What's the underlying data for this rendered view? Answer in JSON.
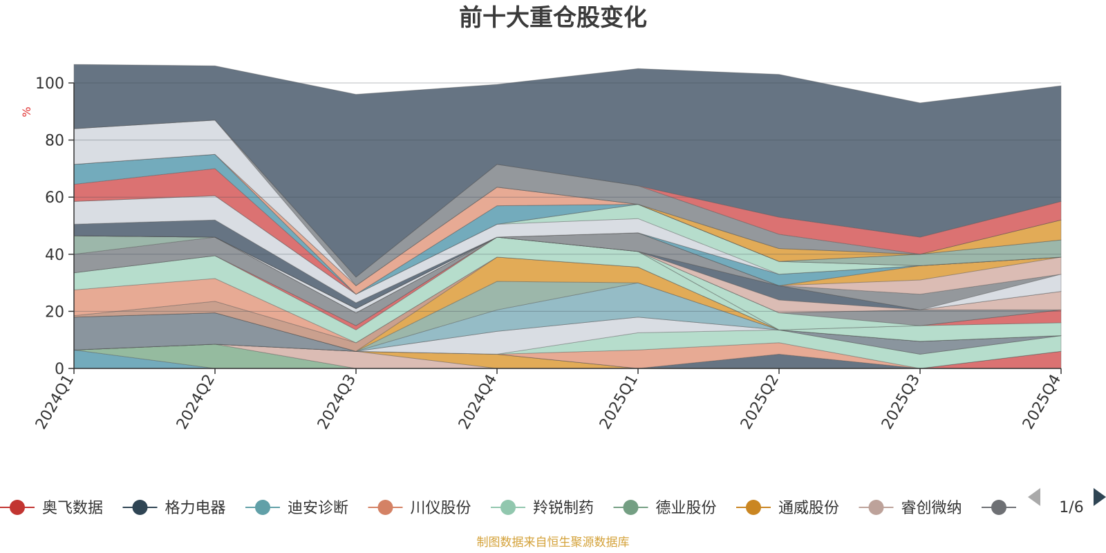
{
  "chart_data": {
    "type": "area",
    "stacked": true,
    "title": "前十大重仓股变化",
    "y_unit": "%",
    "ylim": [
      0,
      100
    ],
    "yticks": [
      0,
      20,
      40,
      60,
      80,
      100
    ],
    "grid": true,
    "categories": [
      "2024Q1",
      "2024Q2",
      "2024Q3",
      "2024Q4",
      "2025Q1",
      "2025Q2",
      "2025Q3",
      "2025Q4"
    ],
    "series": [
      {
        "name": "迪安诊断",
        "color": "#6ba7b8",
        "values": [
          6.5,
          0,
          0,
          0,
          0,
          0,
          0,
          0
        ]
      },
      {
        "name": "德业股份",
        "color": "#8fb79a",
        "values": [
          0,
          8.5,
          0,
          0,
          0,
          0,
          0,
          0
        ]
      },
      {
        "name": "睿创微纳",
        "color": "#d9b8b0",
        "values": [
          0,
          0,
          6,
          0,
          0,
          0,
          0,
          0
        ]
      },
      {
        "name": "通威股份",
        "color": "#e0a64e",
        "values": [
          0,
          0,
          0,
          5,
          0,
          0,
          0,
          0
        ]
      },
      {
        "name": "奥飞数据",
        "color": "#d96a6a",
        "values": [
          0,
          0,
          0,
          0,
          0,
          0,
          0,
          6
        ]
      },
      {
        "name": "格力电器",
        "color": "#5e6d7c",
        "values": [
          0,
          0,
          0,
          0,
          0,
          5,
          0,
          0
        ]
      },
      {
        "name": "川仪股份",
        "color": "#e6a58e",
        "values": [
          0,
          0,
          0,
          0,
          6.5,
          4,
          0,
          0
        ]
      },
      {
        "name": "羚锐制药",
        "color": "#b2dbc9",
        "values": [
          0,
          0,
          0,
          0,
          6,
          4.5,
          5,
          5.5
        ]
      },
      {
        "name": "",
        "color": "#d7dbe2",
        "values": [
          0,
          0,
          0,
          8,
          5.5,
          0,
          0,
          0
        ]
      },
      {
        "name": "",
        "color": "#848f99",
        "values": [
          11.5,
          11,
          0,
          0,
          0,
          0,
          4.5,
          0
        ]
      },
      {
        "name": "",
        "color": "#8fb8c3",
        "values": [
          0,
          0,
          0,
          7.5,
          12,
          0,
          0,
          0
        ]
      },
      {
        "name": "",
        "color": "#97b3a5",
        "values": [
          0,
          0,
          0,
          10,
          0,
          0,
          0,
          0
        ]
      },
      {
        "name": "",
        "color": "#e0a64e",
        "values": [
          0,
          0,
          0,
          8.5,
          5.5,
          0,
          0,
          0
        ]
      },
      {
        "name": "",
        "color": "#c79b88",
        "values": [
          0.5,
          4,
          3,
          0,
          0,
          0,
          0,
          0
        ]
      },
      {
        "name": "",
        "color": "#e6a58e",
        "values": [
          9,
          8,
          0,
          0,
          0,
          0,
          0,
          0
        ]
      },
      {
        "name": "",
        "color": "#b2dbc9",
        "values": [
          6,
          8,
          4.5,
          7,
          5.5,
          0,
          5.5,
          4.5
        ]
      },
      {
        "name": "",
        "color": "#d96a6a",
        "values": [
          0,
          0,
          1.5,
          0,
          0,
          0,
          0,
          4.5
        ]
      },
      {
        "name": "",
        "color": "#b2dbc9",
        "values": [
          0,
          0,
          0,
          0,
          0,
          6,
          0,
          0
        ]
      },
      {
        "name": "",
        "color": "#8e9297",
        "values": [
          6.5,
          6.5,
          4.5,
          0,
          0,
          0,
          5.5,
          0
        ]
      },
      {
        "name": "",
        "color": "#97b3a5",
        "values": [
          6.5,
          0,
          0,
          0,
          0,
          0,
          0,
          0
        ]
      },
      {
        "name": "",
        "color": "#d9b8b0",
        "values": [
          0,
          0,
          0,
          0,
          0,
          4.5,
          0,
          6.5
        ]
      },
      {
        "name": "",
        "color": "#5e6d7c",
        "values": [
          0,
          0,
          0,
          0,
          0,
          5,
          0,
          0
        ]
      },
      {
        "name": "",
        "color": "#d7dbe2",
        "values": [
          0,
          0,
          1.5,
          0,
          0,
          0,
          0,
          6
        ]
      },
      {
        "name": "",
        "color": "#8e9297",
        "values": [
          0,
          0,
          0,
          0,
          6.5,
          0,
          5.5,
          0
        ]
      },
      {
        "name": "",
        "color": "#d9b8b0",
        "values": [
          0,
          0,
          0,
          0,
          0,
          0,
          5,
          6
        ]
      },
      {
        "name": "",
        "color": "#e0a64e",
        "values": [
          0,
          0,
          0,
          0,
          0,
          0,
          5,
          0
        ]
      },
      {
        "name": "",
        "color": "#6ba7b8",
        "values": [
          0,
          0,
          0,
          0,
          0,
          4,
          0,
          0
        ]
      },
      {
        "name": "",
        "color": "#5e6d7c",
        "values": [
          4,
          6,
          2,
          0,
          0,
          0,
          0,
          0
        ]
      },
      {
        "name": "",
        "color": "#d7dbe2",
        "values": [
          8,
          8.5,
          3,
          4.5,
          5,
          0,
          0,
          0
        ]
      },
      {
        "name": "",
        "color": "#b2dbc9",
        "values": [
          0,
          0,
          0,
          0,
          5,
          4.5,
          0,
          0
        ]
      },
      {
        "name": "",
        "color": "#d96a6a",
        "values": [
          6,
          9.5,
          0,
          0,
          0,
          0,
          0,
          0
        ]
      },
      {
        "name": "",
        "color": "#6ba7b8",
        "values": [
          7,
          5,
          0,
          6.5,
          0,
          0,
          0,
          0
        ]
      },
      {
        "name": "",
        "color": "#97b3a5",
        "values": [
          0,
          0,
          0,
          0,
          0,
          0,
          4,
          6
        ]
      },
      {
        "name": "",
        "color": "#e6a58e",
        "values": [
          0,
          0,
          3,
          6.5,
          0,
          0,
          0,
          0
        ]
      },
      {
        "name": "",
        "color": "#e0a64e",
        "values": [
          0,
          0,
          0,
          0,
          0,
          4.5,
          0,
          7
        ]
      },
      {
        "name": "",
        "color": "#d7dbe2",
        "values": [
          12.5,
          12,
          0,
          0,
          0,
          0,
          0,
          0
        ]
      },
      {
        "name": "",
        "color": "#8e9297",
        "values": [
          0,
          0,
          3,
          8,
          6.5,
          5,
          0,
          0
        ]
      },
      {
        "name": "",
        "color": "#d96a6a",
        "values": [
          0,
          0,
          0,
          0,
          0,
          6,
          6,
          6.5
        ]
      },
      {
        "name": "",
        "color": "#5e6d7c",
        "values": [
          22.5,
          19,
          64,
          28,
          41,
          50,
          47,
          40.5
        ]
      }
    ],
    "legend": {
      "position": "bottom",
      "page": "1/6",
      "items": [
        {
          "name": "奥飞数据",
          "color": "#c23531"
        },
        {
          "name": "格力电器",
          "color": "#2f4554"
        },
        {
          "name": "迪安诊断",
          "color": "#61a0a8"
        },
        {
          "name": "川仪股份",
          "color": "#d48265"
        },
        {
          "name": "羚锐制药",
          "color": "#91c7ae"
        },
        {
          "name": "德业股份",
          "color": "#749f83"
        },
        {
          "name": "通威股份",
          "color": "#ca8622"
        },
        {
          "name": "睿创微纳",
          "color": "#bda29a"
        },
        {
          "name": "",
          "color": "#6e7074"
        }
      ]
    }
  },
  "source_note": "制图数据来自恒生聚源数据库"
}
